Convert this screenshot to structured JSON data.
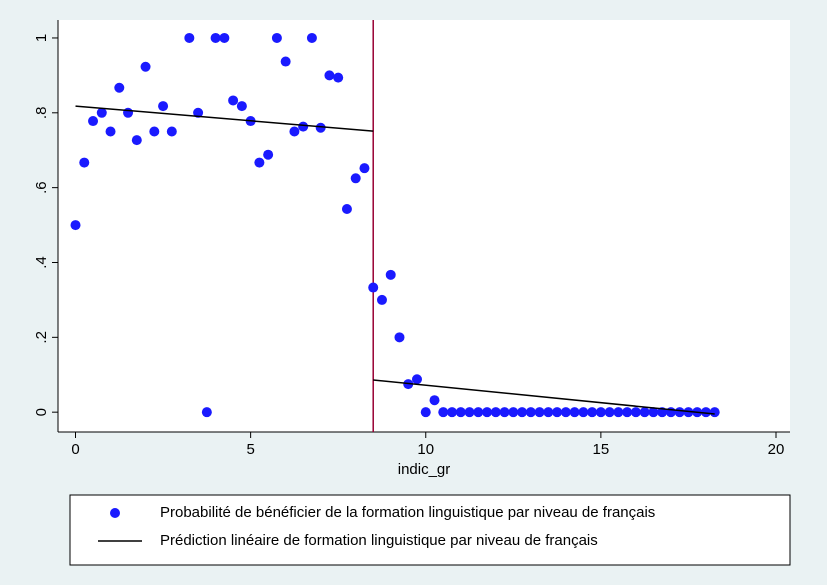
{
  "chart_data": {
    "type": "scatter",
    "x_label": "indic_gr",
    "xlim": [
      -0.5,
      20.4
    ],
    "xticks": [
      0,
      5,
      10,
      15,
      20
    ],
    "ylim": [
      -0.053,
      1.048
    ],
    "yticks": [
      0,
      {
        "value": 0.2,
        "label": ".2"
      },
      {
        "value": 0.4,
        "label": ".4"
      },
      {
        "value": 0.6,
        "label": ".6"
      },
      {
        "value": 0.8,
        "label": ".8"
      },
      1
    ],
    "vline": 8.5,
    "vline_color": "#990033",
    "series": [
      {
        "name": "Probabilité de bénéficier de la formation linguistique par niveau de français",
        "type": "scatter",
        "color": "#1a1aff",
        "x": [
          0,
          0.25,
          0.5,
          0.75,
          1,
          1.25,
          1.5,
          1.75,
          2,
          2.25,
          2.5,
          2.75,
          3.25,
          3.5,
          3.75,
          4,
          4.25,
          4.5,
          4.75,
          5,
          5.25,
          5.5,
          5.75,
          6,
          6.25,
          6.5,
          6.75,
          7,
          7.25,
          7.5,
          7.75,
          8,
          8.25,
          8.5,
          8.75,
          9,
          9.25,
          9.5,
          9.75,
          10,
          10.25,
          10.5,
          10.75,
          11,
          11.25,
          11.5,
          11.75,
          12,
          12.25,
          12.5,
          12.75,
          13,
          13.25,
          13.5,
          13.75,
          14,
          14.25,
          14.5,
          14.75,
          15,
          15.25,
          15.5,
          15.75,
          16,
          16.25,
          16.5,
          16.75,
          17,
          17.25,
          17.5,
          17.75,
          18,
          18.25
        ],
        "values": [
          0.5,
          0.667,
          0.778,
          0.8,
          0.75,
          0.867,
          0.8,
          0.727,
          0.923,
          0.75,
          0.818,
          0.75,
          1,
          0.8,
          0,
          1,
          1,
          0.833,
          0.818,
          0.778,
          0.667,
          0.688,
          1,
          0.937,
          0.75,
          0.763,
          1,
          0.76,
          0.9,
          0.894,
          0.543,
          0.625,
          0.652,
          0.333,
          0.3,
          0.367,
          0.2,
          0.075,
          0.088,
          0,
          0.032,
          0,
          0,
          0,
          0,
          0,
          0,
          0,
          0,
          0,
          0,
          0,
          0,
          0,
          0,
          0,
          0,
          0,
          0,
          0,
          0,
          0,
          0,
          0,
          0,
          0,
          0,
          0,
          0,
          0,
          0,
          0,
          0
        ]
      },
      {
        "name": "Prédiction linéaire de formation linguistique par niveau de français",
        "type": "line",
        "color": "#000000",
        "x": [
          0,
          8.5
        ],
        "values": [
          0.818,
          0.751
        ]
      },
      {
        "name": "Prédiction linéaire de formation linguistique par niveau de français",
        "type": "line",
        "color": "#000000",
        "x": [
          8.5,
          18.25
        ],
        "values": [
          0.086,
          -0.005
        ]
      }
    ]
  }
}
